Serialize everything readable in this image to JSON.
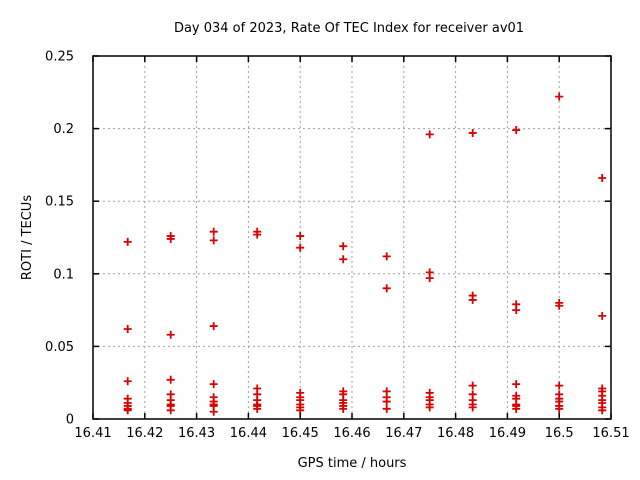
{
  "chart_data": {
    "type": "scatter",
    "title": "Day 034 of 2023, Rate Of TEC Index for receiver av01",
    "xlabel": "GPS time / hours",
    "ylabel": "ROTI / TECUs",
    "xlim": [
      16.41,
      16.51
    ],
    "ylim": [
      0,
      0.25
    ],
    "grid": true,
    "legend": "none",
    "marker": "plus",
    "colors": {
      "marker": "#dd0000",
      "grid": "#a0a0a0",
      "border": "#000000",
      "text": "#000000",
      "background": "#ffffff"
    },
    "xticks": {
      "values": [
        16.41,
        16.42,
        16.43,
        16.44,
        16.45,
        16.46,
        16.47,
        16.48,
        16.49,
        16.5,
        16.51
      ],
      "labels": [
        "16.41",
        "16.42",
        "16.43",
        "16.44",
        "16.45",
        "16.46",
        "16.47",
        "16.48",
        "16.49",
        "16.5",
        "16.51"
      ]
    },
    "yticks": {
      "values": [
        0,
        0.05,
        0.1,
        0.15,
        0.2,
        0.25
      ],
      "labels": [
        "0",
        "0.05",
        "0.1",
        "0.15",
        "0.2",
        "0.25"
      ]
    },
    "series": [
      {
        "name": "ROTI",
        "points": [
          [
            16.4167,
            0.122
          ],
          [
            16.4167,
            0.062
          ],
          [
            16.4167,
            0.026
          ],
          [
            16.4167,
            0.014
          ],
          [
            16.4167,
            0.011
          ],
          [
            16.4167,
            0.009
          ],
          [
            16.4167,
            0.007
          ],
          [
            16.4167,
            0.006
          ],
          [
            16.425,
            0.126
          ],
          [
            16.425,
            0.124
          ],
          [
            16.425,
            0.058
          ],
          [
            16.425,
            0.027
          ],
          [
            16.425,
            0.017
          ],
          [
            16.425,
            0.013
          ],
          [
            16.425,
            0.01
          ],
          [
            16.425,
            0.009
          ],
          [
            16.425,
            0.006
          ],
          [
            16.4333,
            0.129
          ],
          [
            16.4333,
            0.123
          ],
          [
            16.4333,
            0.064
          ],
          [
            16.4333,
            0.024
          ],
          [
            16.4333,
            0.015
          ],
          [
            16.4333,
            0.012
          ],
          [
            16.4333,
            0.01
          ],
          [
            16.4333,
            0.009
          ],
          [
            16.4333,
            0.005
          ],
          [
            16.4417,
            0.129
          ],
          [
            16.4417,
            0.127
          ],
          [
            16.4417,
            0.021
          ],
          [
            16.4417,
            0.017
          ],
          [
            16.4417,
            0.013
          ],
          [
            16.4417,
            0.01
          ],
          [
            16.4417,
            0.009
          ],
          [
            16.4417,
            0.007
          ],
          [
            16.45,
            0.126
          ],
          [
            16.45,
            0.118
          ],
          [
            16.45,
            0.018
          ],
          [
            16.45,
            0.015
          ],
          [
            16.45,
            0.013
          ],
          [
            16.45,
            0.01
          ],
          [
            16.45,
            0.008
          ],
          [
            16.45,
            0.006
          ],
          [
            16.4583,
            0.119
          ],
          [
            16.4583,
            0.11
          ],
          [
            16.4583,
            0.019
          ],
          [
            16.4583,
            0.017
          ],
          [
            16.4583,
            0.013
          ],
          [
            16.4583,
            0.011
          ],
          [
            16.4583,
            0.009
          ],
          [
            16.4583,
            0.007
          ],
          [
            16.4667,
            0.112
          ],
          [
            16.4667,
            0.09
          ],
          [
            16.4667,
            0.019
          ],
          [
            16.4667,
            0.015
          ],
          [
            16.4667,
            0.012
          ],
          [
            16.4667,
            0.007
          ],
          [
            16.475,
            0.196
          ],
          [
            16.475,
            0.101
          ],
          [
            16.475,
            0.097
          ],
          [
            16.475,
            0.018
          ],
          [
            16.475,
            0.015
          ],
          [
            16.475,
            0.013
          ],
          [
            16.475,
            0.01
          ],
          [
            16.475,
            0.008
          ],
          [
            16.4833,
            0.197
          ],
          [
            16.4833,
            0.085
          ],
          [
            16.4833,
            0.082
          ],
          [
            16.4833,
            0.023
          ],
          [
            16.4833,
            0.017
          ],
          [
            16.4833,
            0.013
          ],
          [
            16.4833,
            0.01
          ],
          [
            16.4833,
            0.008
          ],
          [
            16.4917,
            0.199
          ],
          [
            16.4917,
            0.079
          ],
          [
            16.4917,
            0.075
          ],
          [
            16.4917,
            0.024
          ],
          [
            16.4917,
            0.016
          ],
          [
            16.4917,
            0.014
          ],
          [
            16.4917,
            0.01
          ],
          [
            16.4917,
            0.009
          ],
          [
            16.4917,
            0.007
          ],
          [
            16.5,
            0.222
          ],
          [
            16.5,
            0.08
          ],
          [
            16.5,
            0.078
          ],
          [
            16.5,
            0.023
          ],
          [
            16.5,
            0.017
          ],
          [
            16.5,
            0.014
          ],
          [
            16.5,
            0.012
          ],
          [
            16.5,
            0.009
          ],
          [
            16.5,
            0.007
          ],
          [
            16.5083,
            0.166
          ],
          [
            16.5083,
            0.071
          ],
          [
            16.5083,
            0.021
          ],
          [
            16.5083,
            0.019
          ],
          [
            16.5083,
            0.016
          ],
          [
            16.5083,
            0.013
          ],
          [
            16.5083,
            0.011
          ],
          [
            16.5083,
            0.008
          ],
          [
            16.5083,
            0.006
          ]
        ]
      }
    ]
  }
}
